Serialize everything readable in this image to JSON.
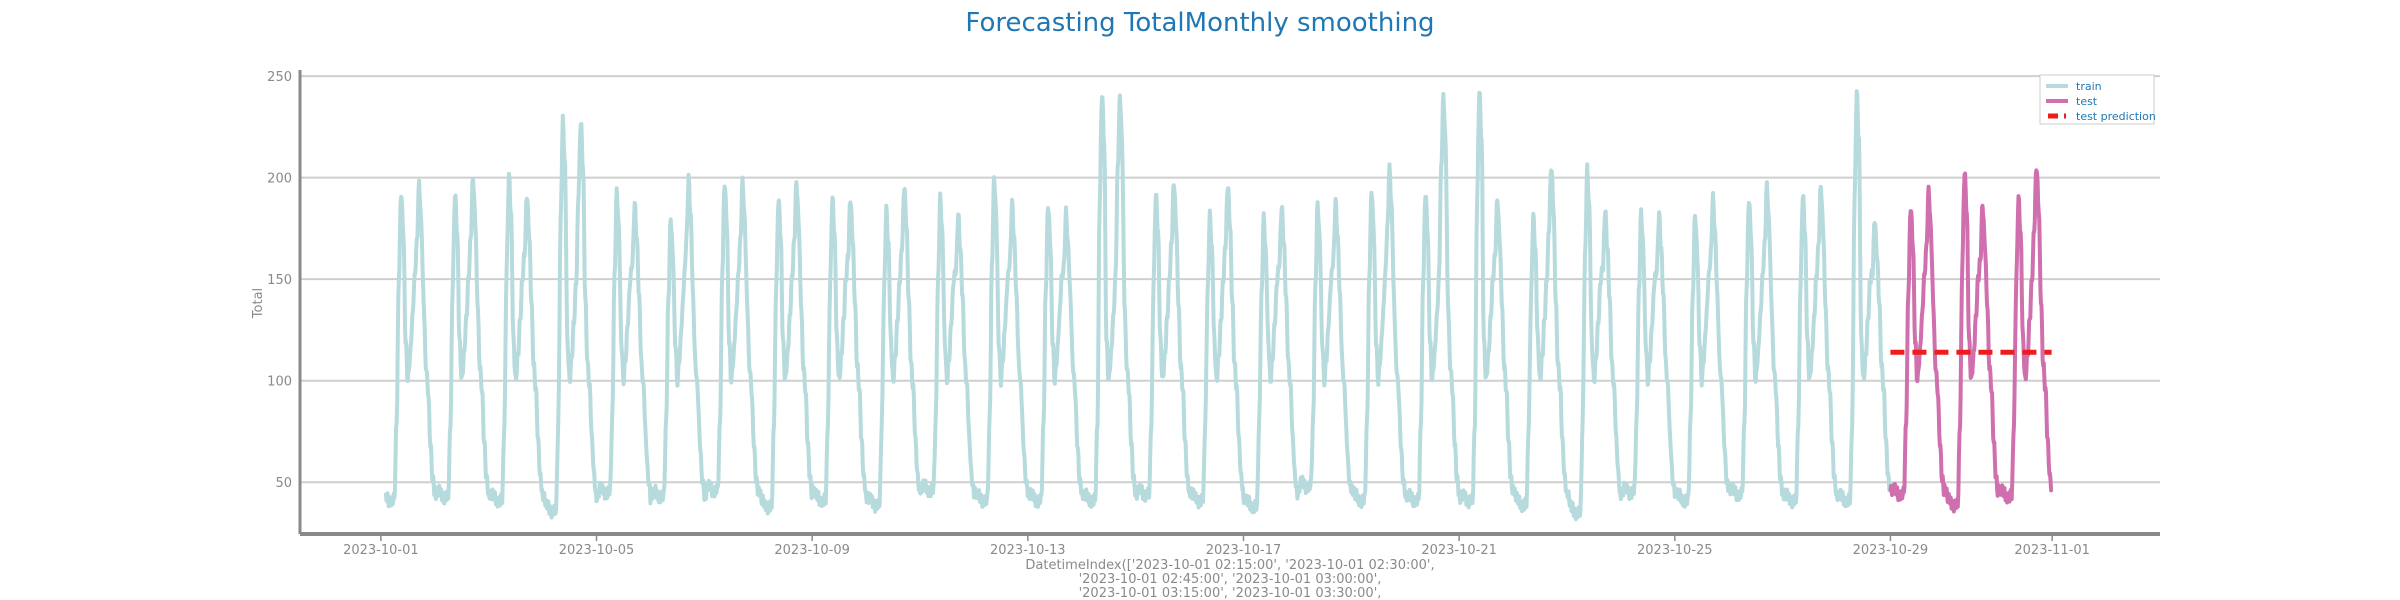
{
  "chart_data": {
    "type": "line",
    "title": "Forecasting TotalMonthly smoothing",
    "ylabel": "Total",
    "xlabel_lines": [
      "DatetimeIndex(['2023-10-01 02:15:00', '2023-10-01 02:30:00',",
      "'2023-10-01 02:45:00', '2023-10-01 03:00:00',",
      "'2023-10-01 03:15:00', '2023-10-01 03:30:00',"
    ],
    "ylim": [
      25,
      253
    ],
    "yticks": [
      50,
      100,
      150,
      200,
      250
    ],
    "xlim": [
      "2023-09-29T12:00",
      "2023-11-03T00:00"
    ],
    "xticks": [
      "2023-10-01",
      "2023-10-05",
      "2023-10-09",
      "2023-10-13",
      "2023-10-17",
      "2023-10-21",
      "2023-10-25",
      "2023-10-29",
      "2023-11-01"
    ],
    "grid": "horizontal",
    "legend_position": "top-right",
    "daily_peaks": {
      "train_dates": [
        "2023-10-01",
        "2023-10-02",
        "2023-10-03",
        "2023-10-04",
        "2023-10-05",
        "2023-10-06",
        "2023-10-07",
        "2023-10-08",
        "2023-10-09",
        "2023-10-10",
        "2023-10-11",
        "2023-10-12",
        "2023-10-13",
        "2023-10-14",
        "2023-10-15",
        "2023-10-16",
        "2023-10-17",
        "2023-10-18",
        "2023-10-19",
        "2023-10-20",
        "2023-10-21",
        "2023-10-22",
        "2023-10-23",
        "2023-10-24",
        "2023-10-25",
        "2023-10-26",
        "2023-10-27",
        "2023-10-28"
      ],
      "train_morning": [
        193,
        192,
        201,
        228,
        193,
        180,
        198,
        190,
        190,
        184,
        190,
        200,
        187,
        242,
        192,
        182,
        180,
        187,
        194,
        193,
        243,
        181,
        204,
        183,
        182,
        190,
        192,
        242
      ],
      "train_evening": [
        197,
        200,
        192,
        228,
        187,
        199,
        198,
        198,
        190,
        196,
        182,
        187,
        183,
        240,
        198,
        197,
        186,
        188,
        204,
        240,
        190,
        206,
        184,
        182,
        190,
        196,
        196,
        180
      ],
      "train_trough": [
        40,
        42,
        40,
        35,
        44,
        42,
        45,
        37,
        40,
        38,
        45,
        40,
        40,
        40,
        43,
        40,
        37,
        47,
        40,
        40,
        40,
        38,
        34,
        44,
        40,
        43,
        40,
        40
      ],
      "test_dates": [
        "2023-10-29",
        "2023-10-30",
        "2023-10-31"
      ],
      "test_morning": [
        186,
        203,
        190
      ],
      "test_evening": [
        194,
        187,
        206
      ],
      "test_trough": [
        43,
        38,
        42
      ]
    },
    "series": [
      {
        "name": "train",
        "color": "#b7dadd",
        "start": "2023-10-01T02:15",
        "end": "2023-10-28T23:45"
      },
      {
        "name": "test",
        "color": "#cf6fae",
        "start": "2023-10-29T00:00",
        "end": "2023-10-31T23:45"
      },
      {
        "name": "test prediction",
        "color": "#ee1c1c",
        "style": "dashed",
        "value": 114,
        "start": "2023-10-29T00:00",
        "end": "2023-10-31T23:45"
      }
    ]
  }
}
